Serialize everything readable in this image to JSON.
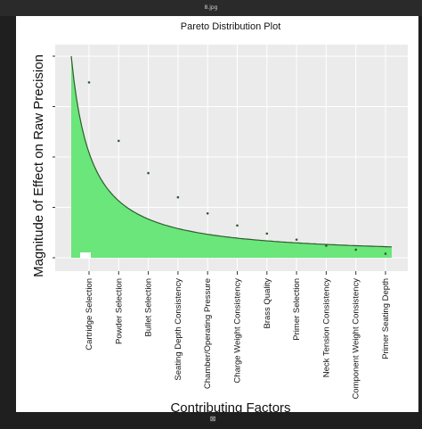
{
  "window": {
    "title": "8.jpg",
    "viewer_control_icon": "fit-to-screen-icon"
  },
  "colors": {
    "panel_bg": "#ebebeb",
    "fill": "#6be67a",
    "line": "#2e5d2e",
    "text": "#111111"
  },
  "chart_data": {
    "type": "area",
    "title": "Pareto Distribution Plot",
    "xlabel": "Contributing Factors",
    "ylabel": "Magnitude of Effect on Raw Precision",
    "categories": [
      "Cartridge Selection",
      "Powder Selection",
      "Bullet Selection",
      "Seating Depth Consistency",
      "Chamber/Operating Pressure",
      "Charge Weight Consistency",
      "Brass Quality",
      "Primer Selection",
      "Neck Tension Consistency",
      "Component Weight Consistency",
      "Primer Seating Depth"
    ],
    "values": [
      0.87,
      0.58,
      0.42,
      0.3,
      0.22,
      0.16,
      0.12,
      0.09,
      0.06,
      0.04,
      0.02
    ],
    "ylim": [
      0,
      1
    ],
    "y_ticks_labeled": false,
    "grid": true,
    "legend": "none"
  }
}
